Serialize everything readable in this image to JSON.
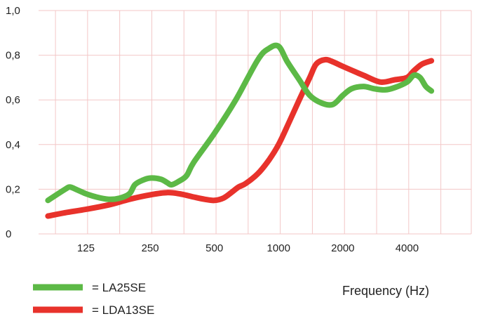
{
  "chart_data": {
    "type": "line",
    "title": "",
    "xlabel": "Frequency (Hz)",
    "ylabel": "",
    "x_scale": "log",
    "x_ticks": [
      125,
      250,
      500,
      1000,
      2000,
      4000
    ],
    "x_tick_labels": [
      "125",
      "250",
      "500",
      "1000",
      "2000",
      "4000"
    ],
    "xlim": [
      75,
      8000
    ],
    "ylim": [
      0,
      1.0
    ],
    "y_ticks": [
      0,
      0.2,
      0.4,
      0.6,
      0.8,
      1.0
    ],
    "y_tick_labels": [
      "0",
      "0,2",
      "0,4",
      "0,6",
      "0,8",
      "1,0"
    ],
    "grid": true,
    "legend_position": "bottom-left",
    "series": [
      {
        "name": "LA25SE",
        "legend_label": "= LA25SE",
        "color": "#5cb946",
        "points": [
          [
            83,
            0.15
          ],
          [
            100,
            0.2
          ],
          [
            105,
            0.21
          ],
          [
            112,
            0.2
          ],
          [
            125,
            0.18
          ],
          [
            140,
            0.165
          ],
          [
            160,
            0.155
          ],
          [
            180,
            0.16
          ],
          [
            200,
            0.18
          ],
          [
            212,
            0.22
          ],
          [
            230,
            0.24
          ],
          [
            250,
            0.25
          ],
          [
            280,
            0.245
          ],
          [
            300,
            0.23
          ],
          [
            315,
            0.22
          ],
          [
            340,
            0.235
          ],
          [
            370,
            0.26
          ],
          [
            400,
            0.32
          ],
          [
            500,
            0.45
          ],
          [
            630,
            0.6
          ],
          [
            800,
            0.78
          ],
          [
            900,
            0.83
          ],
          [
            1000,
            0.84
          ],
          [
            1100,
            0.77
          ],
          [
            1250,
            0.69
          ],
          [
            1400,
            0.62
          ],
          [
            1600,
            0.585
          ],
          [
            1800,
            0.58
          ],
          [
            2000,
            0.62
          ],
          [
            2200,
            0.65
          ],
          [
            2500,
            0.66
          ],
          [
            2800,
            0.65
          ],
          [
            3150,
            0.645
          ],
          [
            3500,
            0.655
          ],
          [
            4000,
            0.68
          ],
          [
            4300,
            0.71
          ],
          [
            4600,
            0.7
          ],
          [
            4900,
            0.66
          ],
          [
            5200,
            0.64
          ]
        ]
      },
      {
        "name": "LDA13SE",
        "legend_label": "= LDA13SE",
        "color": "#e8322b",
        "points": [
          [
            83,
            0.08
          ],
          [
            100,
            0.095
          ],
          [
            125,
            0.11
          ],
          [
            160,
            0.13
          ],
          [
            200,
            0.155
          ],
          [
            250,
            0.175
          ],
          [
            300,
            0.185
          ],
          [
            350,
            0.178
          ],
          [
            400,
            0.165
          ],
          [
            450,
            0.155
          ],
          [
            500,
            0.15
          ],
          [
            550,
            0.16
          ],
          [
            600,
            0.185
          ],
          [
            650,
            0.21
          ],
          [
            700,
            0.225
          ],
          [
            800,
            0.27
          ],
          [
            900,
            0.33
          ],
          [
            1000,
            0.4
          ],
          [
            1120,
            0.5
          ],
          [
            1250,
            0.6
          ],
          [
            1400,
            0.7
          ],
          [
            1500,
            0.76
          ],
          [
            1650,
            0.78
          ],
          [
            1800,
            0.77
          ],
          [
            2000,
            0.75
          ],
          [
            2500,
            0.71
          ],
          [
            3000,
            0.68
          ],
          [
            3500,
            0.69
          ],
          [
            4000,
            0.7
          ],
          [
            4300,
            0.73
          ],
          [
            4700,
            0.76
          ],
          [
            5200,
            0.775
          ]
        ]
      }
    ]
  }
}
